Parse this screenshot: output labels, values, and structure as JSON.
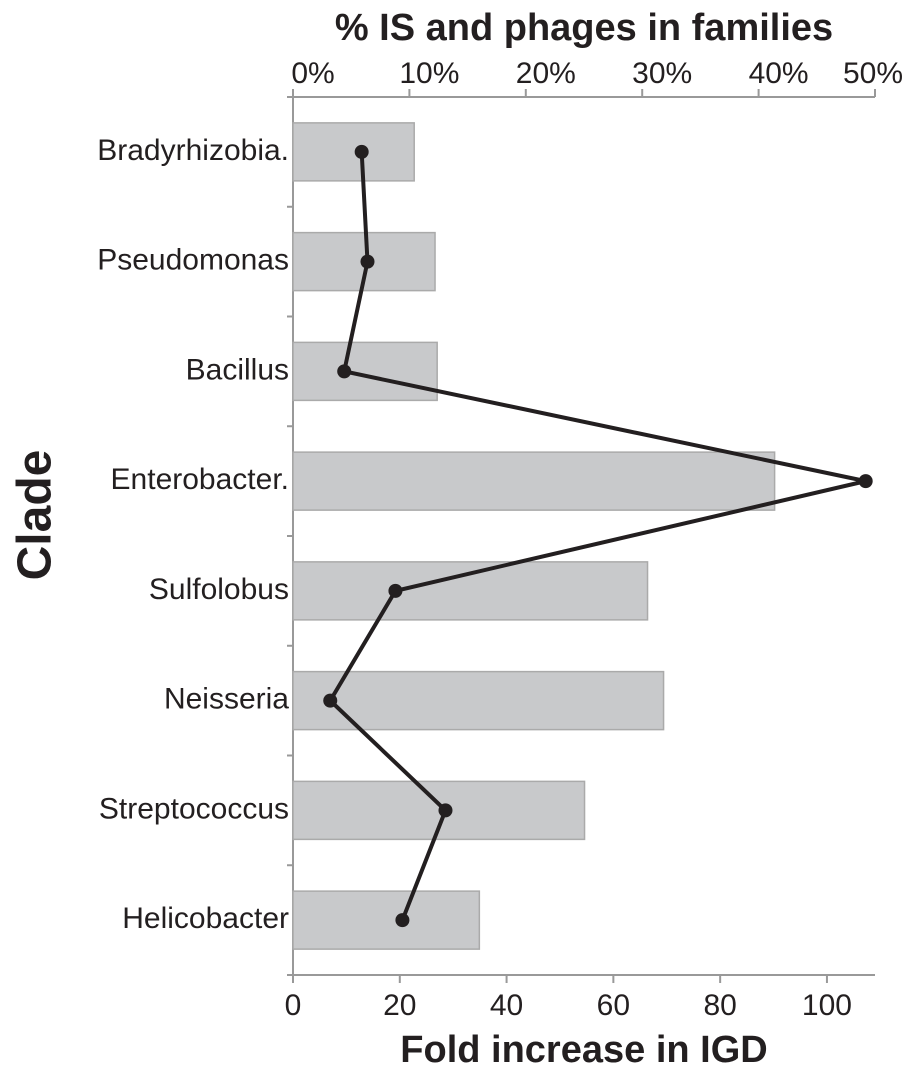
{
  "chart_data": {
    "type": "bar",
    "orientation": "horizontal",
    "ylabel": "Clade",
    "xlabel": "Fold increase in IGD",
    "x2label": "% IS and phages in families",
    "categories": [
      "Bradyrhizobia.",
      "Pseudomonas",
      "Bacillus",
      "Enterobacter.",
      "Sulfolobus",
      "Neisseria",
      "Streptococcus",
      "Helicobacter"
    ],
    "series": [
      {
        "type": "bar",
        "color": "#c8c9cb",
        "values": [
          22.7,
          26.6,
          27,
          90.2,
          66.4,
          69.4,
          54.6,
          34.9
        ]
      },
      {
        "type": "line",
        "axis": "x2",
        "color": "#231f20",
        "values": [
          5.9,
          6.4,
          4.4,
          49.2,
          8.8,
          3.2,
          13.1,
          9.4
        ]
      }
    ],
    "xlim": [
      0,
      109
    ],
    "xticks": [
      0,
      20,
      40,
      60,
      80,
      100
    ],
    "x2lim": [
      0,
      50
    ],
    "x2ticks": [
      {
        "value": 0,
        "label": "0%"
      },
      {
        "value": 10,
        "label": "10%"
      },
      {
        "value": 20,
        "label": "20%"
      },
      {
        "value": 30,
        "label": "30%"
      },
      {
        "value": 40,
        "label": "40%"
      },
      {
        "value": 50,
        "label": "50%"
      }
    ]
  }
}
